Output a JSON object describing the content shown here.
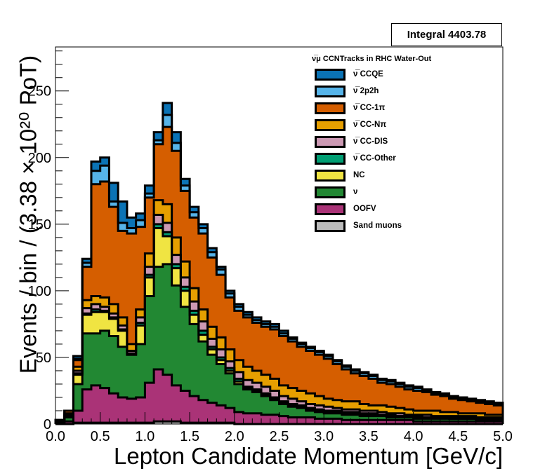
{
  "stat_box": {
    "text": "Integral 4403.78"
  },
  "legend": {
    "title": "ν̅μ CCNTracks in RHC Water-Out",
    "items": [
      {
        "label": "ν̅ CCQE",
        "color": "#0b73b5"
      },
      {
        "label": "ν̅ 2p2h",
        "color": "#56b4e9"
      },
      {
        "label": "ν̅ CC-1π",
        "color": "#d55e00"
      },
      {
        "label": "ν̅ CC-Nπ",
        "color": "#e69f00"
      },
      {
        "label": "ν̅ CC-DIS",
        "color": "#cc99b3"
      },
      {
        "label": "ν̅ CC-Other",
        "color": "#009e73"
      },
      {
        "label": "NC",
        "color": "#f0e442"
      },
      {
        "label": "ν",
        "color": "#228833"
      },
      {
        "label": "OOFV",
        "color": "#aa3377"
      },
      {
        "label": "Sand muons",
        "color": "#bbbbbb"
      }
    ]
  },
  "chart_data": {
    "type": "area",
    "xlabel": "Lepton Candidate Momentum [GeV/c]",
    "ylabel": "Events / bin / (3.38 × 10²⁰ PoT)",
    "xlim": [
      0,
      5
    ],
    "ylim": [
      0,
      283
    ],
    "x_ticks": [
      "0.0",
      "0.5",
      "1.0",
      "1.5",
      "2.0",
      "2.5",
      "3.0",
      "3.5",
      "4.0",
      "4.5",
      "5.0"
    ],
    "y_ticks": [
      "0",
      "50",
      "100",
      "150",
      "200",
      "250"
    ],
    "bin_width": 0.1,
    "bin_edges_start": 0,
    "stack_order": [
      "Sand muons",
      "OOFV",
      "ν",
      "NC",
      "ν̅ CC-Other",
      "ν̅ CC-DIS",
      "ν̅ CC-Nπ",
      "ν̅ CC-1π",
      "ν̅ 2p2h",
      "ν̅ CCQE"
    ],
    "cumulative_tops": [
      [
        0,
        0,
        1,
        1,
        1,
        1,
        1,
        1,
        1,
        1,
        1,
        2,
        2,
        2,
        1,
        1,
        1,
        1,
        1,
        1,
        0,
        0,
        0,
        0,
        0,
        0,
        0,
        0,
        0,
        0,
        0,
        0,
        0,
        0,
        0,
        0,
        0,
        0,
        0,
        0,
        0,
        0,
        0,
        0,
        0,
        0,
        0,
        0,
        0,
        0
      ],
      [
        1,
        2,
        10,
        26,
        29,
        27,
        23,
        20,
        19,
        20,
        31,
        41,
        37,
        29,
        25,
        21,
        18,
        16,
        14,
        12,
        9,
        8,
        8,
        7,
        7,
        6,
        5,
        5,
        5,
        4,
        4,
        4,
        3,
        3,
        3,
        3,
        3,
        3,
        3,
        3,
        2,
        2,
        2,
        2,
        2,
        2,
        2,
        2,
        2,
        2
      ],
      [
        1,
        5,
        30,
        68,
        68,
        70,
        66,
        58,
        52,
        60,
        96,
        118,
        120,
        104,
        88,
        75,
        62,
        52,
        45,
        38,
        30,
        26,
        24,
        21,
        18,
        15,
        13,
        12,
        10,
        9,
        8,
        8,
        7,
        7,
        6,
        6,
        6,
        5,
        5,
        5,
        4,
        4,
        4,
        4,
        4,
        4,
        4,
        3,
        3,
        3
      ],
      [
        2,
        6,
        37,
        82,
        84,
        84,
        79,
        70,
        52,
        74,
        110,
        147,
        141,
        117,
        100,
        82,
        67,
        56,
        48,
        40,
        32,
        27,
        25,
        22,
        19,
        16,
        14,
        13,
        11,
        10,
        9,
        9,
        8,
        8,
        7,
        7,
        7,
        6,
        6,
        5,
        5,
        5,
        5,
        5,
        4,
        4,
        4,
        4,
        4,
        4
      ],
      [
        2,
        6,
        38,
        83,
        86,
        85,
        80,
        71,
        53,
        76,
        112,
        150,
        144,
        120,
        103,
        85,
        70,
        58,
        50,
        42,
        34,
        28,
        26,
        23,
        20,
        17,
        15,
        14,
        12,
        11,
        10,
        10,
        9,
        9,
        8,
        8,
        7,
        7,
        6,
        6,
        6,
        5,
        5,
        5,
        5,
        5,
        5,
        4,
        4,
        4
      ],
      [
        2,
        7,
        40,
        87,
        90,
        88,
        83,
        74,
        55,
        80,
        118,
        157,
        151,
        127,
        110,
        92,
        77,
        64,
        56,
        47,
        39,
        33,
        31,
        28,
        25,
        21,
        19,
        17,
        15,
        14,
        13,
        12,
        11,
        11,
        10,
        10,
        9,
        8,
        8,
        7,
        7,
        7,
        6,
        6,
        6,
        6,
        6,
        5,
        5,
        5
      ],
      [
        2,
        8,
        43,
        93,
        96,
        95,
        90,
        80,
        60,
        86,
        128,
        168,
        165,
        140,
        122,
        102,
        86,
        73,
        65,
        56,
        48,
        43,
        40,
        37,
        34,
        29,
        27,
        25,
        23,
        21,
        19,
        18,
        17,
        17,
        15,
        14,
        14,
        13,
        12,
        11,
        10,
        10,
        10,
        9,
        9,
        8,
        8,
        8,
        7,
        7
      ],
      [
        3,
        10,
        48,
        118,
        180,
        182,
        163,
        145,
        143,
        148,
        170,
        210,
        223,
        205,
        175,
        155,
        143,
        125,
        112,
        95,
        85,
        80,
        76,
        73,
        71,
        66,
        62,
        58,
        55,
        52,
        49,
        45,
        41,
        38,
        36,
        34,
        31,
        30,
        28,
        26,
        25,
        24,
        22,
        21,
        19,
        18,
        17,
        16,
        15,
        14
      ],
      [
        3,
        10,
        49,
        121,
        190,
        194,
        167,
        151,
        147,
        153,
        173,
        213,
        232,
        211,
        179,
        159,
        147,
        129,
        116,
        98,
        88,
        82,
        78,
        75,
        73,
        68,
        64,
        60,
        57,
        54,
        51,
        47,
        43,
        40,
        38,
        36,
        33,
        32,
        30,
        28,
        27,
        25,
        23,
        22,
        20,
        19,
        18,
        17,
        16,
        15
      ],
      [
        3,
        10,
        51,
        124,
        197,
        200,
        181,
        167,
        155,
        158,
        179,
        219,
        241,
        219,
        184,
        163,
        150,
        132,
        118,
        100,
        90,
        84,
        80,
        77,
        75,
        70,
        65,
        61,
        58,
        55,
        52,
        48,
        44,
        41,
        39,
        37,
        34,
        33,
        31,
        29,
        28,
        26,
        24,
        23,
        21,
        20,
        19,
        18,
        17,
        16
      ]
    ]
  }
}
